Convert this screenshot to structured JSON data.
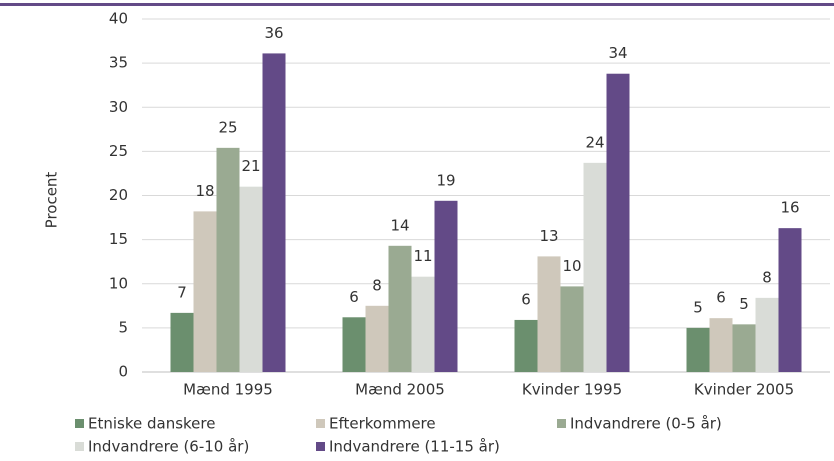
{
  "chart_data": {
    "type": "bar",
    "y_label": "Procent",
    "categories": [
      "Mænd 1995",
      "Mænd 2005",
      "Kvinder 1995",
      "Kvinder 2005"
    ],
    "series": [
      {
        "name": "Etniske danskere",
        "color": "#6b8f6e",
        "values": [
          6.7,
          6.2,
          5.9,
          5.0
        ],
        "value_labels": [
          "7",
          "6",
          "6",
          "5"
        ]
      },
      {
        "name": "Efterkommere",
        "color": "#cfc8bb",
        "values": [
          18.2,
          7.5,
          13.1,
          6.1
        ],
        "value_labels": [
          "18",
          "8",
          "13",
          "6"
        ]
      },
      {
        "name": "Indvandrere (0-5 år)",
        "color": "#9aaa92",
        "values": [
          25.4,
          14.3,
          9.7,
          5.4
        ],
        "value_labels": [
          "25",
          "14",
          "10",
          "5"
        ]
      },
      {
        "name": "Indvandrere (6-10 år)",
        "color": "#d9dcd7",
        "values": [
          21.0,
          10.8,
          23.7,
          8.4
        ],
        "value_labels": [
          "21",
          "11",
          "24",
          "8"
        ]
      },
      {
        "name": "Indvandrere (11-15 år)",
        "color": "#634a87",
        "values": [
          36.1,
          19.4,
          33.8,
          16.3
        ],
        "value_labels": [
          "36",
          "19",
          "34",
          "16"
        ]
      }
    ],
    "ylim": [
      0,
      40
    ],
    "yticks": [
      0,
      5,
      10,
      15,
      20,
      25,
      30,
      35,
      40
    ],
    "grid": true
  }
}
